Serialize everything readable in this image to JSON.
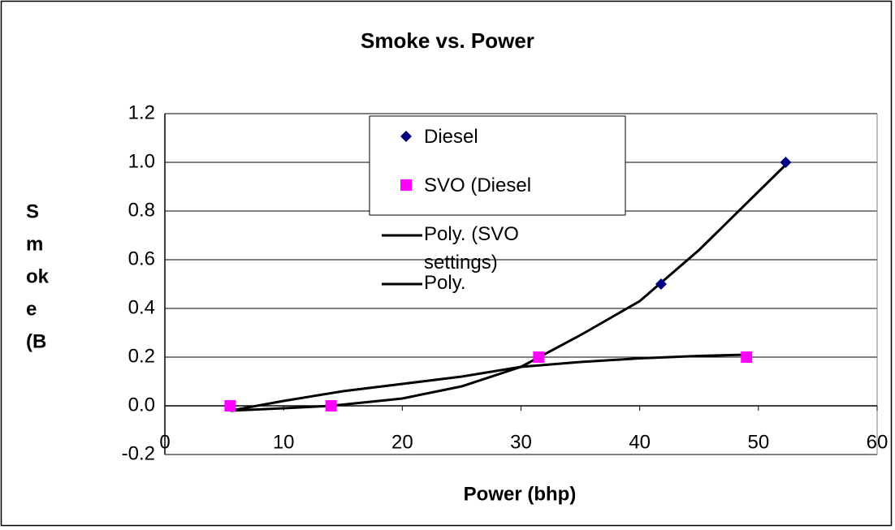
{
  "chart_data": {
    "type": "scatter",
    "title": "Smoke vs. Power",
    "x_label": "Power (bhp)",
    "y_label_lines": [
      "S",
      "m",
      "ok",
      "e",
      "(B"
    ],
    "xlim": [
      0,
      60
    ],
    "xticks": [
      0,
      10,
      20,
      30,
      40,
      50,
      60
    ],
    "ylim": [
      -0.2,
      1.2
    ],
    "yticks": [
      -0.2,
      {
        "value": 0,
        "label": "0.0"
      },
      0.2,
      0.4,
      0.6,
      0.8,
      {
        "value": 1,
        "label": "1.0"
      },
      1.2
    ],
    "grid": true,
    "series": [
      {
        "name": "Diesel",
        "kind": "marker",
        "marker": "diamond",
        "color": "#000080",
        "x": [
          5.5,
          14,
          31.5,
          41.8,
          52.3
        ],
        "values": [
          0,
          0,
          0.2,
          0.5,
          1.0
        ]
      },
      {
        "name": "SVO (Diesel",
        "kind": "marker",
        "marker": "square",
        "color": "#ff00ff",
        "x": [
          5.5,
          14,
          31.5,
          49
        ],
        "values": [
          0,
          0,
          0.2,
          0.2
        ]
      },
      {
        "name": "Poly. (SVO settings)",
        "kind": "line",
        "color": "#000000",
        "x": [
          5.5,
          10,
          15,
          20,
          25,
          30,
          35,
          40,
          45,
          49
        ],
        "values": [
          -0.02,
          0.02,
          0.06,
          0.09,
          0.12,
          0.16,
          0.18,
          0.195,
          0.205,
          0.21
        ]
      },
      {
        "name": "Poly.",
        "kind": "line",
        "color": "#000000",
        "x": [
          5.5,
          10,
          14,
          20,
          25,
          30,
          35,
          40,
          45,
          52.3
        ],
        "values": [
          -0.02,
          -0.01,
          0,
          0.03,
          0.08,
          0.16,
          0.29,
          0.43,
          0.64,
          0.99
        ]
      }
    ]
  }
}
